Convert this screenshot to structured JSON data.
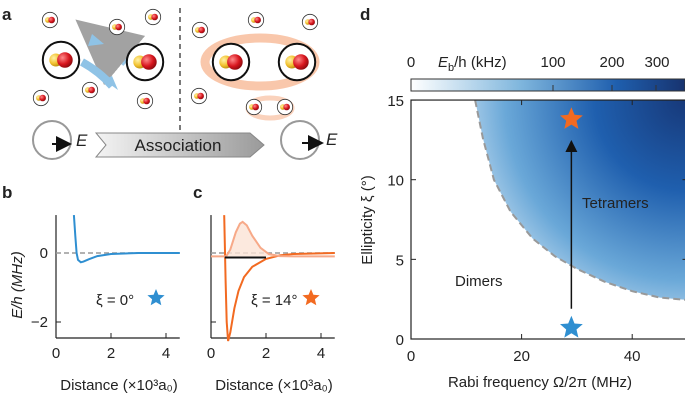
{
  "panels": {
    "a": "a",
    "b": "b",
    "c": "c",
    "d": "d"
  },
  "panel_a": {
    "arrow_label": "Association",
    "field_label_left": "E",
    "field_label_right": "E",
    "colors": {
      "yellow": "#f2c230",
      "red": "#d8161e",
      "blue_arrow": "#8fc3e6",
      "orange_halo": "#f7b48f"
    }
  },
  "chart_data": [
    {
      "id": "b",
      "type": "line",
      "xlabel": "Distance (×10³a₀)",
      "ylabel": "E/h (MHz)",
      "xlim": [
        0,
        4.5
      ],
      "ylim": [
        -2.6,
        1.1
      ],
      "xticks": [
        "0",
        "2",
        "4"
      ],
      "yticks": [
        "0",
        "−2"
      ],
      "annotation": "ξ = 0°",
      "marker_color": "#2f8fd1",
      "series": [
        {
          "color": "#2f8fd1",
          "points": [
            [
              0.65,
              1.1
            ],
            [
              0.7,
              0.5
            ],
            [
              0.75,
              0.0
            ],
            [
              0.8,
              -0.2
            ],
            [
              0.9,
              -0.27
            ],
            [
              1.0,
              -0.25
            ],
            [
              1.2,
              -0.18
            ],
            [
              1.5,
              -0.09
            ],
            [
              2.0,
              -0.03
            ],
            [
              3.0,
              0
            ],
            [
              4.5,
              0
            ]
          ]
        }
      ],
      "reference_line": 0
    },
    {
      "id": "c",
      "type": "line",
      "xlabel": "Distance (×10³a₀)",
      "xlim": [
        0,
        4.5
      ],
      "ylim": [
        -2.6,
        1.1
      ],
      "xticks": [
        "0",
        "2",
        "4"
      ],
      "annotation": "ξ = 14°",
      "marker_color": "#f26a21",
      "series": [
        {
          "color": "#f26a21",
          "points": [
            [
              0.48,
              1.1
            ],
            [
              0.5,
              0.3
            ],
            [
              0.53,
              -0.8
            ],
            [
              0.57,
              -2.0
            ],
            [
              0.62,
              -2.55
            ],
            [
              0.7,
              -2.3
            ],
            [
              0.85,
              -1.6
            ],
            [
              1.0,
              -1.1
            ],
            [
              1.2,
              -0.7
            ],
            [
              1.5,
              -0.4
            ],
            [
              2.0,
              -0.17
            ],
            [
              2.5,
              -0.07
            ],
            [
              3.0,
              -0.03
            ],
            [
              4.5,
              0
            ]
          ]
        },
        {
          "color": "#f7a988",
          "fill": "#fbe3d6",
          "points": [
            [
              0,
              -0.1
            ],
            [
              0.55,
              -0.1
            ],
            [
              0.7,
              0.1
            ],
            [
              0.9,
              0.6
            ],
            [
              1.05,
              0.85
            ],
            [
              1.15,
              0.9
            ],
            [
              1.3,
              0.8
            ],
            [
              1.5,
              0.5
            ],
            [
              1.8,
              0.15
            ],
            [
              2.1,
              -0.03
            ],
            [
              2.5,
              -0.09
            ],
            [
              3.0,
              -0.1
            ],
            [
              4.5,
              -0.1
            ]
          ]
        },
        {
          "color": "#111111",
          "points": [
            [
              0.5,
              -0.13
            ],
            [
              2.0,
              -0.13
            ]
          ]
        }
      ],
      "reference_line": 0
    },
    {
      "id": "d",
      "type": "heatmap",
      "xlabel": "Rabi frequency Ω/2π (MHz)",
      "ylabel": "Ellipticity ξ (°)",
      "xlim": [
        0,
        50
      ],
      "ylim": [
        0,
        15
      ],
      "xticks": [
        "0",
        "20",
        "40"
      ],
      "yticks": [
        "0",
        "5",
        "10",
        "15"
      ],
      "colorbar": {
        "label": "E_b/h (kHz)",
        "label_main": "E",
        "label_sub": "b",
        "label_rest": "/h (kHz)",
        "ticks": [
          "0",
          "100",
          "200",
          "300"
        ],
        "range": [
          0,
          350
        ],
        "colors": [
          "#ffffff",
          "#7fb6dd",
          "#1f5fae",
          "#17336f"
        ]
      },
      "boundary": [
        [
          11.6,
          15
        ],
        [
          13,
          12.6
        ],
        [
          15,
          10
        ],
        [
          18,
          8
        ],
        [
          22,
          6.3
        ],
        [
          26,
          5.2
        ],
        [
          30,
          4.4
        ],
        [
          35,
          3.6
        ],
        [
          40,
          3.0
        ],
        [
          45,
          2.6
        ],
        [
          50,
          2.45
        ]
      ],
      "regions": {
        "below": "Dimers",
        "above": "Tetramers"
      },
      "markers": [
        {
          "x": 29,
          "y": 0.7,
          "color": "#2f8fd1"
        },
        {
          "x": 29,
          "y": 13.8,
          "color": "#f26a21"
        }
      ],
      "arrow": {
        "x": 29,
        "from": 1.9,
        "to": 12.4
      }
    }
  ]
}
